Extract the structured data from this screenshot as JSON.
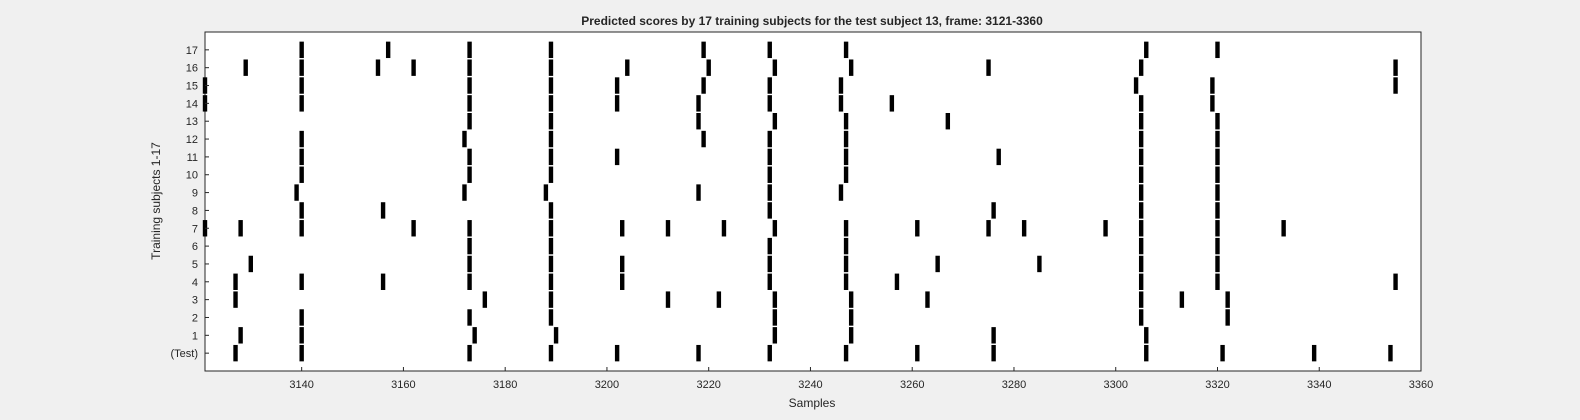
{
  "chart_data": {
    "type": "raster",
    "title": "Predicted scores by 17 training subjects for the test subject 13, frame: 3121-3360",
    "xlabel": "Samples",
    "ylabel": "Training subjects 1-17",
    "xlim": [
      3121,
      3360
    ],
    "xticks": [
      3140,
      3160,
      3180,
      3200,
      3220,
      3240,
      3260,
      3280,
      3300,
      3320,
      3340,
      3360
    ],
    "rows": [
      "(Test)",
      "1",
      "2",
      "3",
      "4",
      "5",
      "6",
      "7",
      "8",
      "9",
      "10",
      "11",
      "12",
      "13",
      "14",
      "15",
      "16",
      "17"
    ],
    "events": [
      [
        3127,
        3140,
        3173,
        3189,
        3202,
        3218,
        3232,
        3247,
        3261,
        3276,
        3306,
        3321,
        3339,
        3354
      ],
      [
        3128,
        3140,
        3174,
        3190,
        3233,
        3248,
        3276,
        3306
      ],
      [
        3140,
        3173,
        3189,
        3233,
        3248,
        3305,
        3322
      ],
      [
        3127,
        3176,
        3189,
        3212,
        3222,
        3233,
        3248,
        3263,
        3305,
        3313,
        3322
      ],
      [
        3127,
        3140,
        3156,
        3173,
        3189,
        3203,
        3232,
        3247,
        3257,
        3305,
        3320,
        3355
      ],
      [
        3130,
        3173,
        3189,
        3203,
        3232,
        3247,
        3265,
        3285,
        3305,
        3320
      ],
      [
        3173,
        3189,
        3232,
        3247,
        3305,
        3320
      ],
      [
        3121,
        3128,
        3140,
        3162,
        3173,
        3189,
        3203,
        3212,
        3223,
        3233,
        3247,
        3261,
        3275,
        3282,
        3298,
        3305,
        3320,
        3333
      ],
      [
        3140,
        3156,
        3189,
        3232,
        3276,
        3305,
        3320
      ],
      [
        3139,
        3172,
        3188,
        3218,
        3232,
        3246,
        3305,
        3320
      ],
      [
        3140,
        3173,
        3189,
        3232,
        3247,
        3305,
        3320
      ],
      [
        3140,
        3173,
        3189,
        3202,
        3232,
        3247,
        3277,
        3305,
        3320
      ],
      [
        3140,
        3172,
        3189,
        3219,
        3232,
        3247,
        3305,
        3320
      ],
      [
        3173,
        3189,
        3218,
        3233,
        3247,
        3267,
        3305,
        3320
      ],
      [
        3121,
        3140,
        3173,
        3189,
        3202,
        3218,
        3232,
        3246,
        3256,
        3305,
        3319
      ],
      [
        3121,
        3140,
        3173,
        3189,
        3202,
        3219,
        3232,
        3246,
        3304,
        3319,
        3355
      ],
      [
        3129,
        3140,
        3155,
        3162,
        3173,
        3189,
        3204,
        3220,
        3233,
        3248,
        3275,
        3305,
        3355
      ],
      [
        3140,
        3157,
        3173,
        3189,
        3219,
        3232,
        3247,
        3306,
        3320
      ]
    ],
    "colors": {
      "background": "#ffffff",
      "mark": "#000000",
      "figure": "#f0f0f0"
    },
    "grid": false
  }
}
